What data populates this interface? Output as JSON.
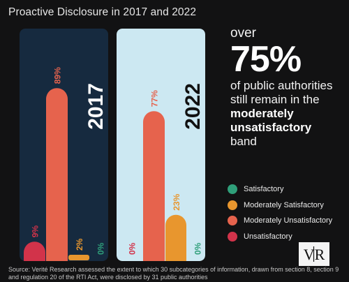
{
  "title": "Proactive Disclosure in 2017 and 2022",
  "colors": {
    "background": "#121213",
    "panel_2017": "#162a3f",
    "panel_2022": "#cce8f2",
    "satisfactory": "#2f9f7a",
    "moderately_satisfactory": "#e8962e",
    "moderately_unsatisfactory": "#e6634d",
    "unsatisfactory": "#d2334a"
  },
  "callout": {
    "pre": "over",
    "big": "75%",
    "body": "of public authorities still remain in the",
    "bold": "moderately unsatisfactory",
    "post": "band"
  },
  "chart_data": [
    {
      "type": "bar",
      "year_label": "2017",
      "categories": [
        "Unsatisfactory",
        "Moderately Unsatisfactory",
        "Moderately Satisfactory",
        "Satisfactory"
      ],
      "values": [
        9,
        89,
        2,
        0
      ],
      "data_labels": [
        "9%",
        "89%",
        "2%",
        "0%"
      ],
      "ylim": [
        0,
        100
      ]
    },
    {
      "type": "bar",
      "year_label": "2022",
      "categories": [
        "Unsatisfactory",
        "Moderately Unsatisfactory",
        "Moderately Satisfactory",
        "Satisfactory"
      ],
      "values": [
        0,
        77,
        23,
        0
      ],
      "data_labels": [
        "0%",
        "77%",
        "23%",
        "0%"
      ],
      "ylim": [
        0,
        100
      ]
    }
  ],
  "legend": [
    {
      "label": "Satisfactory",
      "color": "#2f9f7a"
    },
    {
      "label": "Moderately Satisfactory",
      "color": "#e8962e"
    },
    {
      "label": "Moderately Unsatisfactory",
      "color": "#e6634d"
    },
    {
      "label": "Unsatisfactory",
      "color": "#d2334a"
    }
  ],
  "logo_text": "VR",
  "source": "Source: Verité Research assessed the extent to which 30 subcategories of information, drawn from section 8, section 9 and regulation 20 of the RTI Act, were disclosed by 31 public authorities"
}
